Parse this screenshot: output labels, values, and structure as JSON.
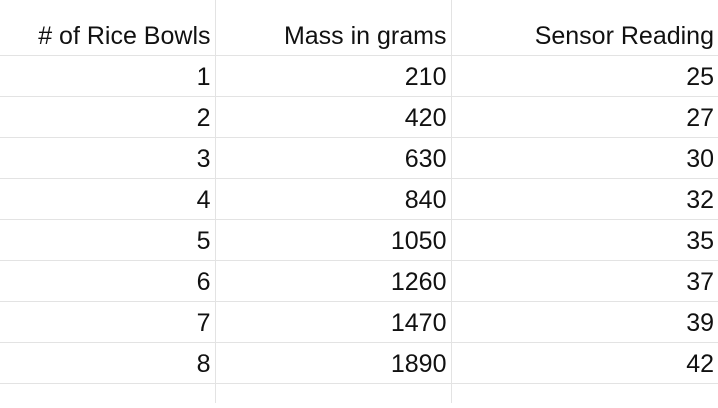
{
  "table": {
    "headers": [
      "# of Rice Bowls",
      "Mass in grams",
      "Sensor Reading"
    ],
    "rows": [
      [
        "1",
        "210",
        "25"
      ],
      [
        "2",
        "420",
        "27"
      ],
      [
        "3",
        "630",
        "30"
      ],
      [
        "4",
        "840",
        "32"
      ],
      [
        "5",
        "1050",
        "35"
      ],
      [
        "6",
        "1260",
        "37"
      ],
      [
        "7",
        "1470",
        "39"
      ],
      [
        "8",
        "1890",
        "42"
      ]
    ]
  }
}
